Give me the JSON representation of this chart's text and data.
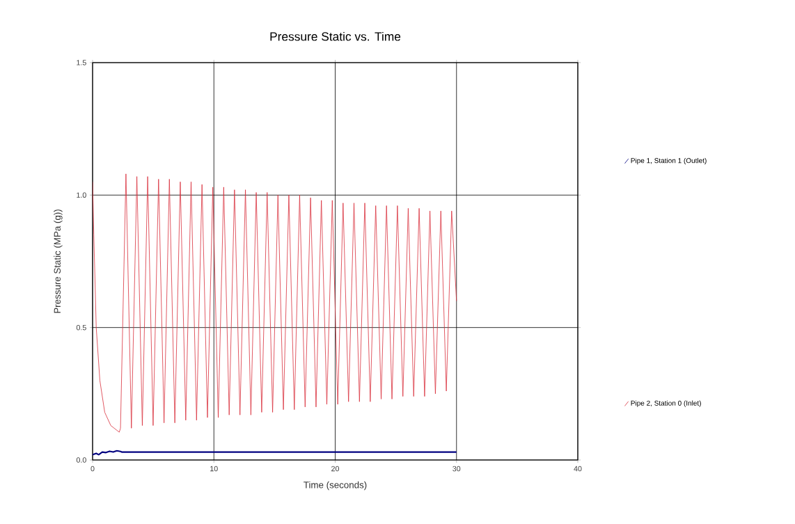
{
  "chart_data": {
    "type": "line",
    "title": "Pressure Static vs. Time",
    "xlabel": "Time (seconds)",
    "ylabel": "Pressure Static (MPa (g))",
    "xlim": [
      0,
      40
    ],
    "xticks": [
      0,
      10,
      20,
      30,
      40
    ],
    "ylim": [
      0,
      1.5
    ],
    "yticks": [
      {
        "value": 0,
        "label": "0.0"
      },
      {
        "value": 0.5,
        "label": "0.5"
      },
      {
        "value": 1.0,
        "label": "1.0"
      },
      {
        "value": 1.5,
        "label": "1.5"
      }
    ],
    "grid": true,
    "legend": "right",
    "marker": "none",
    "line_style": "solid",
    "series": [
      {
        "name": "Pipe 1, Station 1 (Outlet)",
        "color": "#000080",
        "x": [
          0,
          0.3,
          0.5,
          0.8,
          1.1,
          1.4,
          1.7,
          2.0,
          2.3,
          2.4,
          30
        ],
        "values": [
          0.02,
          0.025,
          0.02,
          0.03,
          0.028,
          0.033,
          0.03,
          0.035,
          0.032,
          0.03,
          0.03
        ]
      },
      {
        "name": "Pipe 2, Station 0 (Inlet)",
        "color": "#d9303c",
        "x": [
          0,
          0.1,
          0.3,
          0.6,
          1.0,
          1.5,
          2.2,
          2.3,
          2.75,
          3.2,
          3.65,
          4.1,
          4.54,
          4.99,
          5.44,
          5.89,
          6.33,
          6.78,
          7.23,
          7.68,
          8.12,
          8.57,
          9.02,
          9.47,
          9.91,
          10.36,
          10.81,
          11.26,
          11.7,
          12.15,
          12.6,
          13.05,
          13.49,
          13.94,
          14.39,
          14.84,
          15.28,
          15.73,
          16.18,
          16.63,
          17.07,
          17.52,
          17.97,
          18.42,
          18.86,
          19.31,
          19.76,
          20.21,
          20.65,
          21.1,
          21.55,
          22.0,
          22.44,
          22.89,
          23.34,
          23.79,
          24.23,
          24.68,
          25.13,
          25.58,
          26.02,
          26.47,
          26.92,
          27.37,
          27.81,
          28.26,
          28.71,
          29.16,
          29.6,
          30.0
        ],
        "values": [
          1.05,
          0.85,
          0.5,
          0.3,
          0.18,
          0.13,
          0.105,
          0.12,
          1.08,
          0.12,
          1.07,
          0.13,
          1.07,
          0.13,
          1.06,
          0.14,
          1.06,
          0.14,
          1.05,
          0.15,
          1.05,
          0.15,
          1.04,
          0.16,
          1.03,
          0.16,
          1.03,
          0.17,
          1.02,
          0.17,
          1.02,
          0.17,
          1.01,
          0.18,
          1.01,
          0.18,
          1.0,
          0.19,
          1.0,
          0.19,
          1.0,
          0.2,
          0.99,
          0.2,
          0.98,
          0.21,
          0.98,
          0.21,
          0.97,
          0.22,
          0.97,
          0.22,
          0.97,
          0.22,
          0.96,
          0.23,
          0.96,
          0.23,
          0.96,
          0.24,
          0.95,
          0.24,
          0.95,
          0.24,
          0.94,
          0.25,
          0.94,
          0.26,
          0.94,
          0.6
        ]
      }
    ]
  }
}
